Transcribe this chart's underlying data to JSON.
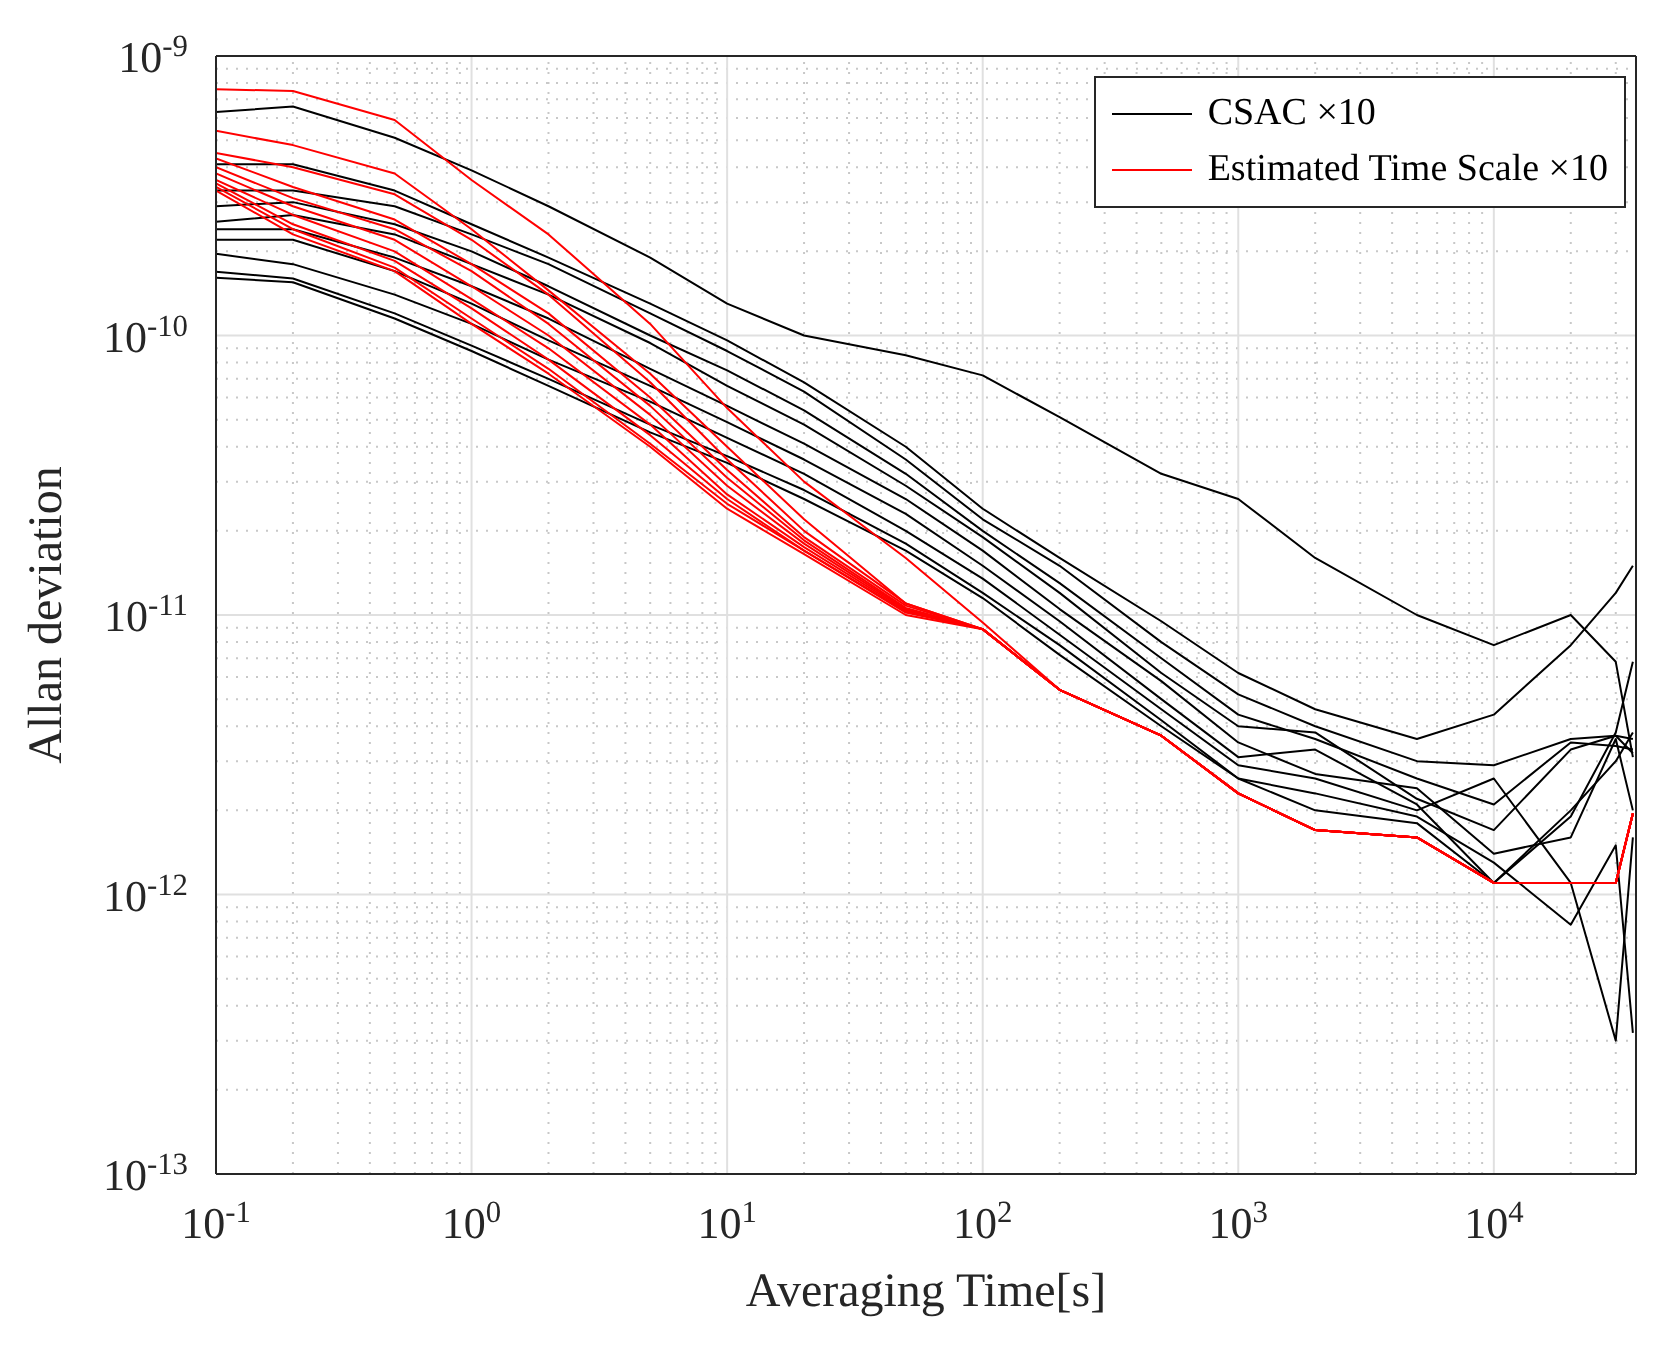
{
  "chart_data": {
    "type": "line",
    "xlabel": "Averaging Time[s]",
    "ylabel": "Allan deviation",
    "log": "xy",
    "grid": true,
    "legend": "top right",
    "marker": "none",
    "line_style": "solid",
    "xlim": [
      0.1,
      36000
    ],
    "ylim": [
      1e-13,
      1e-09
    ],
    "xticks": [
      {
        "value": 0.1,
        "label": "10$^{-1}$"
      },
      {
        "value": 1,
        "label": "10$^{0}$"
      },
      {
        "value": 10,
        "label": "10$^{1}$"
      },
      {
        "value": 100,
        "label": "10$^{2}$"
      },
      {
        "value": 1000,
        "label": "10$^{3}$"
      },
      {
        "value": 10000,
        "label": "10$^{4}$"
      }
    ],
    "yticks": [
      {
        "value": 1e-13,
        "label": "10$^{-13}$"
      },
      {
        "value": 1e-12,
        "label": "10$^{-12}$"
      },
      {
        "value": 1e-11,
        "label": "10$^{-11}$"
      },
      {
        "value": 1e-10,
        "label": "10$^{-10}$"
      },
      {
        "value": 1e-09,
        "label": "10$^{-9}$"
      }
    ],
    "x": [
      0.1,
      0.2,
      0.5,
      1,
      2,
      5,
      10,
      20,
      50,
      100,
      200,
      500,
      1000,
      2000,
      5000,
      10000,
      20000,
      30000,
      35000
    ],
    "series": [
      {
        "name": "CSAC ×10",
        "color": "#000000",
        "values": [
          6.3e-10,
          6.6e-10,
          5.1e-10,
          3.9e-10,
          2.9e-10,
          1.9e-10,
          1.3e-10,
          1e-10,
          8.5e-11,
          7.2e-11,
          5.1e-11,
          3.2e-11,
          2.6e-11,
          1.6e-11,
          1e-11,
          7.8e-12,
          1e-11,
          6.8e-12,
          3.1e-12
        ]
      },
      {
        "color": "#000000",
        "values": [
          4.1e-10,
          4.1e-10,
          3.3e-10,
          2.5e-10,
          1.9e-10,
          1.3e-10,
          9.6e-11,
          6.8e-11,
          4e-11,
          2.4e-11,
          1.6e-11,
          9.5e-12,
          6.2e-12,
          4.6e-12,
          3.6e-12,
          4.4e-12,
          7.8e-12,
          1.2e-11,
          1.5e-11
        ]
      },
      {
        "color": "#000000",
        "values": [
          3.3e-10,
          3.3e-10,
          2.9e-10,
          2.3e-10,
          1.8e-10,
          1.2e-10,
          8.8e-11,
          6.3e-11,
          3.6e-11,
          2.2e-11,
          1.5e-11,
          8e-12,
          5.2e-12,
          4e-12,
          3e-12,
          2.9e-12,
          3.6e-12,
          3.7e-12,
          3.6e-12
        ]
      },
      {
        "color": "#000000",
        "values": [
          2.9e-10,
          3e-10,
          2.5e-10,
          2e-10,
          1.5e-10,
          1e-10,
          7.5e-11,
          5.4e-11,
          3.2e-11,
          2e-11,
          1.3e-11,
          7e-12,
          4.4e-12,
          3.6e-12,
          2.6e-12,
          2.1e-12,
          3.5e-12,
          3.4e-12,
          3.3e-12
        ]
      },
      {
        "color": "#000000",
        "values": [
          2.55e-10,
          2.7e-10,
          2.3e-10,
          1.8e-10,
          1.4e-10,
          9.4e-11,
          6.6e-11,
          4.8e-11,
          2.9e-11,
          1.9e-11,
          1.2e-11,
          6.2e-12,
          4e-12,
          3.8e-12,
          2.2e-12,
          1.7e-12,
          3.3e-12,
          3.7e-12,
          3.2e-12
        ]
      },
      {
        "color": "#000000",
        "values": [
          2.4e-10,
          2.4e-10,
          1.9e-10,
          1.5e-10,
          1.15e-10,
          7.6e-11,
          5.6e-11,
          4.1e-11,
          2.6e-11,
          1.7e-11,
          1.05e-11,
          5.8e-12,
          3.5e-12,
          2.7e-12,
          2.4e-12,
          1.4e-12,
          1.6e-12,
          3.6e-12,
          2e-12
        ]
      },
      {
        "color": "#000000",
        "values": [
          2.2e-10,
          2.2e-10,
          1.7e-10,
          1.3e-10,
          9.6e-11,
          6.6e-11,
          4.9e-11,
          3.6e-11,
          2.3e-11,
          1.5e-11,
          9.5e-12,
          5e-12,
          3.1e-12,
          3.3e-12,
          2.1e-12,
          1.1e-12,
          2e-12,
          3e-12,
          3.8e-12
        ]
      },
      {
        "color": "#000000",
        "values": [
          1.96e-10,
          1.8e-10,
          1.4e-10,
          1.1e-10,
          8.2e-11,
          5.8e-11,
          4.3e-11,
          3.2e-11,
          2e-11,
          1.35e-11,
          8.5e-12,
          4.6e-12,
          2.9e-12,
          2.6e-12,
          2e-12,
          2.6e-12,
          1.1e-12,
          3e-13,
          1.6e-12
        ]
      },
      {
        "color": "#000000",
        "values": [
          1.69e-10,
          1.6e-10,
          1.2e-10,
          9.2e-11,
          7e-11,
          4.8e-11,
          3.7e-11,
          2.8e-11,
          1.8e-11,
          1.2e-11,
          7.8e-12,
          4.2e-12,
          2.6e-12,
          2.3e-12,
          1.9e-12,
          1.3e-12,
          7.8e-13,
          1.5e-12,
          3.2e-13
        ]
      },
      {
        "color": "#000000",
        "values": [
          1.61e-10,
          1.55e-10,
          1.15e-10,
          8.8e-11,
          6.6e-11,
          4.5e-11,
          3.5e-11,
          2.6e-11,
          1.7e-11,
          1.15e-11,
          7.2e-12,
          4e-12,
          2.6e-12,
          2e-12,
          1.8e-12,
          1.1e-12,
          1.9e-12,
          3.8e-12,
          6.8e-12
        ]
      },
      {
        "name": "Estimated Time Scale ×10",
        "color": "#ff0000",
        "values": [
          7.6e-10,
          7.5e-10,
          5.9e-10,
          3.6e-10,
          2.3e-10,
          1.1e-10,
          5.5e-11,
          3e-11,
          1.6e-11,
          9.4e-12,
          5.4e-12,
          3.7e-12,
          2.3e-12,
          1.7e-12,
          1.6e-12,
          1.1e-12,
          1.1e-12,
          1.1e-12,
          1.95e-12
        ]
      },
      {
        "color": "#ff0000",
        "values": [
          5.4e-10,
          4.8e-10,
          3.8e-10,
          2.4e-10,
          1.45e-10,
          7.3e-11,
          4e-11,
          2.2e-11,
          1.1e-11,
          8.9e-12,
          5.4e-12,
          3.7e-12,
          2.3e-12,
          1.7e-12,
          1.6e-12,
          1.1e-12,
          1.1e-12,
          1.1e-12,
          1.95e-12
        ]
      },
      {
        "color": "#ff0000",
        "values": [
          4.5e-10,
          4e-10,
          3.2e-10,
          2.2e-10,
          1.4e-10,
          6.8e-11,
          3.6e-11,
          2e-11,
          1.1e-11,
          8.9e-12,
          5.4e-12,
          3.7e-12,
          2.3e-12,
          1.7e-12,
          1.6e-12,
          1.1e-12,
          1.1e-12,
          1.1e-12,
          1.95e-12
        ]
      },
      {
        "color": "#ff0000",
        "values": [
          4.3e-10,
          3.4e-10,
          2.6e-10,
          1.8e-10,
          1.2e-10,
          6e-11,
          3.3e-11,
          1.9e-11,
          1.08e-11,
          8.9e-12,
          5.4e-12,
          3.7e-12,
          2.3e-12,
          1.7e-12,
          1.6e-12,
          1.1e-12,
          1.1e-12,
          1.1e-12,
          1.95e-12
        ]
      },
      {
        "color": "#ff0000",
        "values": [
          4e-10,
          3.1e-10,
          2.4e-10,
          1.7e-10,
          1.1e-10,
          5.6e-11,
          3.1e-11,
          1.85e-11,
          1.06e-11,
          8.9e-12,
          5.4e-12,
          3.7e-12,
          2.3e-12,
          1.7e-12,
          1.6e-12,
          1.1e-12,
          1.1e-12,
          1.1e-12,
          1.95e-12
        ]
      },
      {
        "color": "#ff0000",
        "values": [
          3.8e-10,
          2.9e-10,
          2.2e-10,
          1.5e-10,
          1e-10,
          5.2e-11,
          2.9e-11,
          1.8e-11,
          1.05e-11,
          8.9e-12,
          5.4e-12,
          3.7e-12,
          2.3e-12,
          1.7e-12,
          1.6e-12,
          1.1e-12,
          1.1e-12,
          1.1e-12,
          1.95e-12
        ]
      },
      {
        "color": "#ff0000",
        "values": [
          3.6e-10,
          2.7e-10,
          2e-10,
          1.35e-10,
          9e-11,
          4.8e-11,
          2.7e-11,
          1.75e-11,
          1.04e-11,
          8.9e-12,
          5.4e-12,
          3.7e-12,
          2.3e-12,
          1.7e-12,
          1.6e-12,
          1.1e-12,
          1.1e-12,
          1.1e-12,
          1.95e-12
        ]
      },
      {
        "color": "#ff0000",
        "values": [
          3.5e-10,
          2.5e-10,
          1.85e-10,
          1.25e-10,
          8.2e-11,
          4.4e-11,
          2.6e-11,
          1.7e-11,
          1.03e-11,
          8.9e-12,
          5.4e-12,
          3.7e-12,
          2.3e-12,
          1.7e-12,
          1.6e-12,
          1.1e-12,
          1.1e-12,
          1.1e-12,
          1.95e-12
        ]
      },
      {
        "color": "#ff0000",
        "values": [
          3.4e-10,
          2.4e-10,
          1.75e-10,
          1.15e-10,
          7.6e-11,
          4.1e-11,
          2.5e-11,
          1.7e-11,
          1.02e-11,
          8.9e-12,
          5.4e-12,
          3.7e-12,
          2.3e-12,
          1.7e-12,
          1.6e-12,
          1.1e-12,
          1.1e-12,
          1.1e-12,
          1.95e-12
        ]
      },
      {
        "color": "#ff0000",
        "values": [
          3.3e-10,
          2.3e-10,
          1.7e-10,
          1.1e-10,
          7.3e-11,
          4e-11,
          2.4e-11,
          1.65e-11,
          1e-11,
          8.9e-12,
          5.4e-12,
          3.7e-12,
          2.3e-12,
          1.7e-12,
          1.6e-12,
          1.1e-12,
          1.1e-12,
          1.1e-12,
          1.95e-12
        ]
      }
    ]
  }
}
